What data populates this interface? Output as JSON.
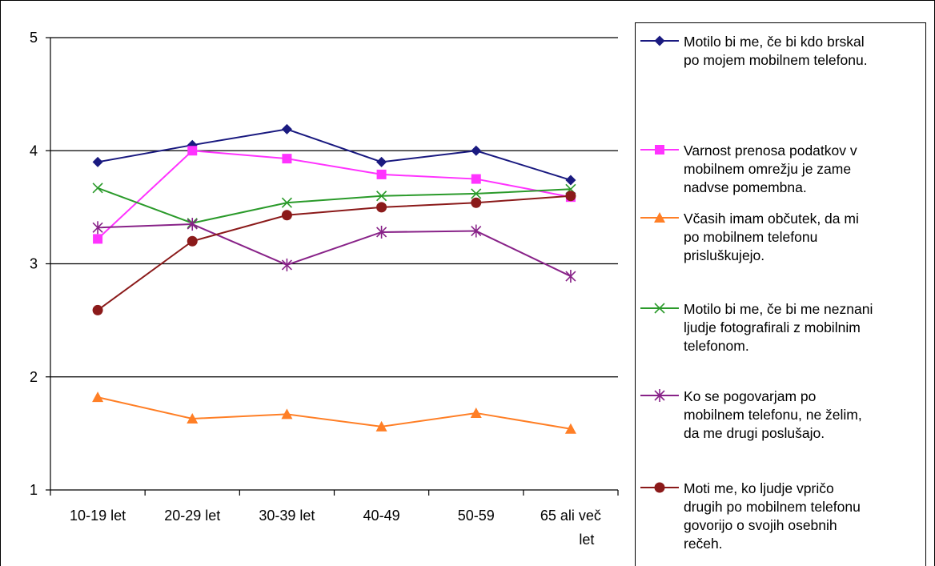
{
  "chart_data": {
    "type": "line",
    "categories": [
      "10-19 let",
      "20-29 let",
      "30-39 let",
      "40-49",
      "50-59",
      "65 ali več\nlet"
    ],
    "ylim": [
      1,
      5
    ],
    "yticks": [
      1,
      2,
      3,
      4,
      5
    ],
    "grid": "horizontal major gridlines",
    "legend": "right",
    "series": [
      {
        "name": "Motilo bi me, če bi kdo brskal\npo mojem mobilnem telefonu.",
        "color": "#1a1a80",
        "marker": "diamond",
        "values": [
          3.9,
          4.05,
          4.19,
          3.9,
          4.0,
          3.74
        ]
      },
      {
        "name": "Varnost prenosa podatkov v\nmobilnem omrežju je zame\nnadvse pomembna.",
        "color": "#ff33ff",
        "marker": "square",
        "values": [
          3.22,
          4.0,
          3.93,
          3.79,
          3.75,
          3.59
        ]
      },
      {
        "name": "Včasih imam občutek, da mi\npo mobilnem telefonu\nprisluškujejo.",
        "color": "#ff7f26",
        "marker": "triangle",
        "values": [
          1.82,
          1.63,
          1.67,
          1.56,
          1.68,
          1.54
        ]
      },
      {
        "name": "Motilo bi me, če bi me neznani\nljudje fotografirali z mobilnim\ntelefonom.",
        "color": "#2a9a2a",
        "marker": "x",
        "values": [
          3.67,
          3.36,
          3.54,
          3.6,
          3.62,
          3.66
        ]
      },
      {
        "name": "Ko se pogovarjam po\nmobilnem telefonu, ne želim,\nda me drugi poslušajo.",
        "color": "#882288",
        "marker": "asterisk",
        "values": [
          3.32,
          3.35,
          2.99,
          3.28,
          3.29,
          2.89
        ]
      },
      {
        "name": "Moti me, ko ljudje vpričo\ndrugih po mobilnem telefonu\ngovorijo o svojih osebnih\nrečeh.",
        "color": "#8b1a1a",
        "marker": "circle",
        "values": [
          2.59,
          3.2,
          3.43,
          3.5,
          3.54,
          3.6
        ]
      }
    ]
  }
}
